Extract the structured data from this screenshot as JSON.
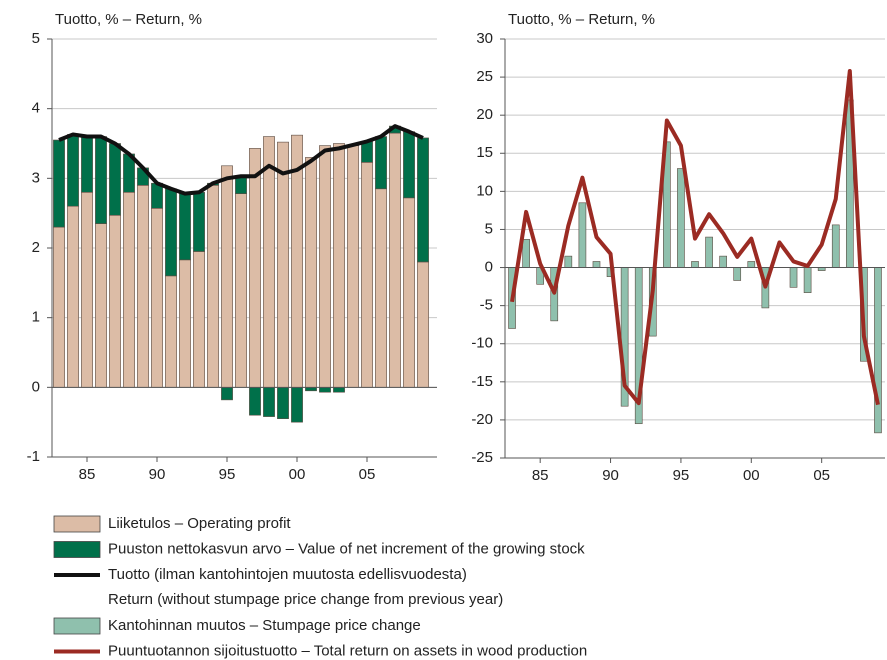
{
  "chart_data": [
    {
      "type": "bar",
      "title": "Tuotto, % – Return, %",
      "stacked": true,
      "x": [
        1983,
        1984,
        1985,
        1986,
        1987,
        1988,
        1989,
        1990,
        1991,
        1992,
        1993,
        1994,
        1995,
        1996,
        1997,
        1998,
        1999,
        2000,
        2001,
        2002,
        2003,
        2004,
        2005,
        2006,
        2007,
        2008,
        2009
      ],
      "xlim": [
        1982.5,
        2010
      ],
      "xticks": [
        {
          "value": 1985,
          "label": "85"
        },
        {
          "value": 1990,
          "label": "90"
        },
        {
          "value": 1995,
          "label": "95"
        },
        {
          "value": 2000,
          "label": "00"
        },
        {
          "value": 2005,
          "label": "05"
        }
      ],
      "ylim": [
        -1,
        5
      ],
      "yticks": [
        -1,
        0,
        1,
        2,
        3,
        4,
        5
      ],
      "grid": true,
      "series": [
        {
          "name": "Liiketulos – Operating profit",
          "type": "bar",
          "color": "#dcbca6",
          "values": [
            2.3,
            2.6,
            2.8,
            2.35,
            2.47,
            2.8,
            2.9,
            2.57,
            1.6,
            1.83,
            1.95,
            2.9,
            3.18,
            2.78,
            3.43,
            3.6,
            3.52,
            3.62,
            3.3,
            3.47,
            3.5,
            3.47,
            3.23,
            2.85,
            3.65,
            2.72,
            1.8
          ]
        },
        {
          "name": "Puuston nettokasvun arvo – Value of net increment of the growing stock",
          "type": "bar",
          "color": "#00704a",
          "values": [
            1.25,
            1.03,
            0.8,
            1.25,
            1.03,
            0.55,
            0.25,
            0.36,
            1.25,
            0.95,
            0.85,
            0.03,
            -0.18,
            0.25,
            -0.4,
            -0.42,
            -0.45,
            -0.5,
            -0.05,
            -0.07,
            -0.07,
            0.01,
            0.3,
            0.75,
            0.1,
            0.95,
            1.78
          ]
        },
        {
          "name": "Tuotto (ilman kantohintojen muutosta edellisvuodesta)\nReturn (without stumpage price change from previous year)",
          "type": "line",
          "color": "#111111",
          "values": [
            3.55,
            3.63,
            3.6,
            3.6,
            3.5,
            3.35,
            3.15,
            2.93,
            2.85,
            2.78,
            2.8,
            2.93,
            3.0,
            3.03,
            3.03,
            3.18,
            3.07,
            3.12,
            3.25,
            3.4,
            3.43,
            3.48,
            3.53,
            3.6,
            3.75,
            3.67,
            3.58
          ]
        }
      ]
    },
    {
      "type": "bar",
      "title": "Tuotto, % – Return, %",
      "stacked": false,
      "x": [
        1983,
        1984,
        1985,
        1986,
        1987,
        1988,
        1989,
        1990,
        1991,
        1992,
        1993,
        1994,
        1995,
        1996,
        1997,
        1998,
        1999,
        2000,
        2001,
        2002,
        2003,
        2004,
        2005,
        2006,
        2007,
        2008,
        2009
      ],
      "xlim": [
        1982.5,
        2009.5
      ],
      "xticks": [
        {
          "value": 1985,
          "label": "85"
        },
        {
          "value": 1990,
          "label": "90"
        },
        {
          "value": 1995,
          "label": "95"
        },
        {
          "value": 2000,
          "label": "00"
        },
        {
          "value": 2005,
          "label": "05"
        }
      ],
      "ylim": [
        -25,
        30
      ],
      "yticks": [
        -25,
        -20,
        -15,
        -10,
        -5,
        0,
        5,
        10,
        15,
        20,
        25,
        30
      ],
      "grid": true,
      "series": [
        {
          "name": "Kantohinnan muutos – Stumpage price change",
          "type": "bar",
          "color": "#8fc0ad",
          "values": [
            -8,
            3.7,
            -2.2,
            -7,
            1.5,
            8.5,
            0.8,
            -1.2,
            -18.2,
            -20.5,
            -9,
            16.5,
            13,
            0.8,
            4,
            1.5,
            -1.7,
            0.8,
            -5.3,
            0,
            -2.6,
            -3.3,
            -0.4,
            5.6,
            22,
            -12.3,
            -21.7
          ]
        },
        {
          "name": "Puuntuotannon sijoitustuotto – Total return on assets in wood production",
          "type": "line",
          "color": "#9b2b23",
          "values": [
            -4.5,
            7.3,
            0.5,
            -3.3,
            5.5,
            11.8,
            4,
            1.8,
            -15.5,
            -17.8,
            -3,
            19.3,
            16,
            3.8,
            7,
            4.5,
            1.4,
            3.8,
            -2.5,
            3.3,
            0.8,
            0.2,
            3,
            9,
            25.8,
            -9,
            -18
          ]
        }
      ]
    }
  ]
}
